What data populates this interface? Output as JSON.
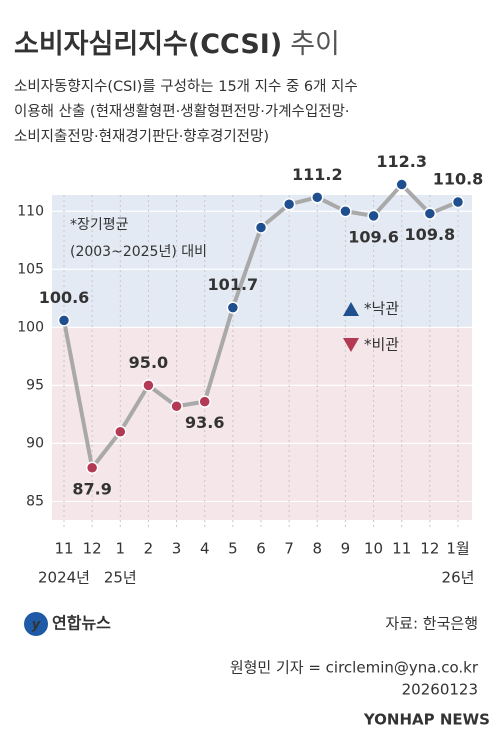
{
  "chart_data": {
    "type": "line",
    "title": "소비자심리지수(CCSI)",
    "title_suffix": "추이",
    "subtitle": [
      "소비자동향지수(CSI)를 구성하는 15개 지수 중 6개 지수",
      "이용해 산출 (현재생활형편·생활형편전망·가계수입전망·",
      "소비지출전망·현재경기판단·향후경기전망)"
    ],
    "categories": [
      "11",
      "12",
      "1",
      "2",
      "3",
      "4",
      "5",
      "6",
      "7",
      "8",
      "9",
      "10",
      "11",
      "12",
      "1월"
    ],
    "year_labels": [
      "2024년",
      null,
      "25년",
      null,
      null,
      null,
      null,
      null,
      null,
      null,
      null,
      null,
      null,
      null,
      "26년"
    ],
    "values": [
      100.6,
      87.9,
      91.0,
      95.0,
      93.2,
      93.6,
      101.7,
      108.6,
      110.6,
      111.2,
      110.0,
      109.6,
      112.3,
      109.8,
      110.8
    ],
    "value_labels": [
      "100.6",
      "87.9",
      null,
      "95.0",
      null,
      "93.6",
      "101.7",
      null,
      null,
      "111.2",
      null,
      "109.6",
      "112.3",
      "109.8",
      "110.8"
    ],
    "baseline": 100,
    "line_color": "#a9a9a9",
    "above_color": "#1f4f8f",
    "below_color": "#b23a55",
    "ylim": [
      83.4,
      111.4
    ],
    "yticks": [
      85,
      90,
      95,
      100,
      105,
      110
    ],
    "grid": true,
    "annotations": [
      "*장기평균",
      "(2003~2025년) 대비"
    ],
    "legend": [
      "*낙관",
      "*비관"
    ],
    "source": "자료: 한국은행",
    "logo": "연합뉴스",
    "credit": "원형민 기자 = circlemin@yna.co.kr",
    "date": "20260123",
    "watermark": "YONHAP NEWS"
  }
}
